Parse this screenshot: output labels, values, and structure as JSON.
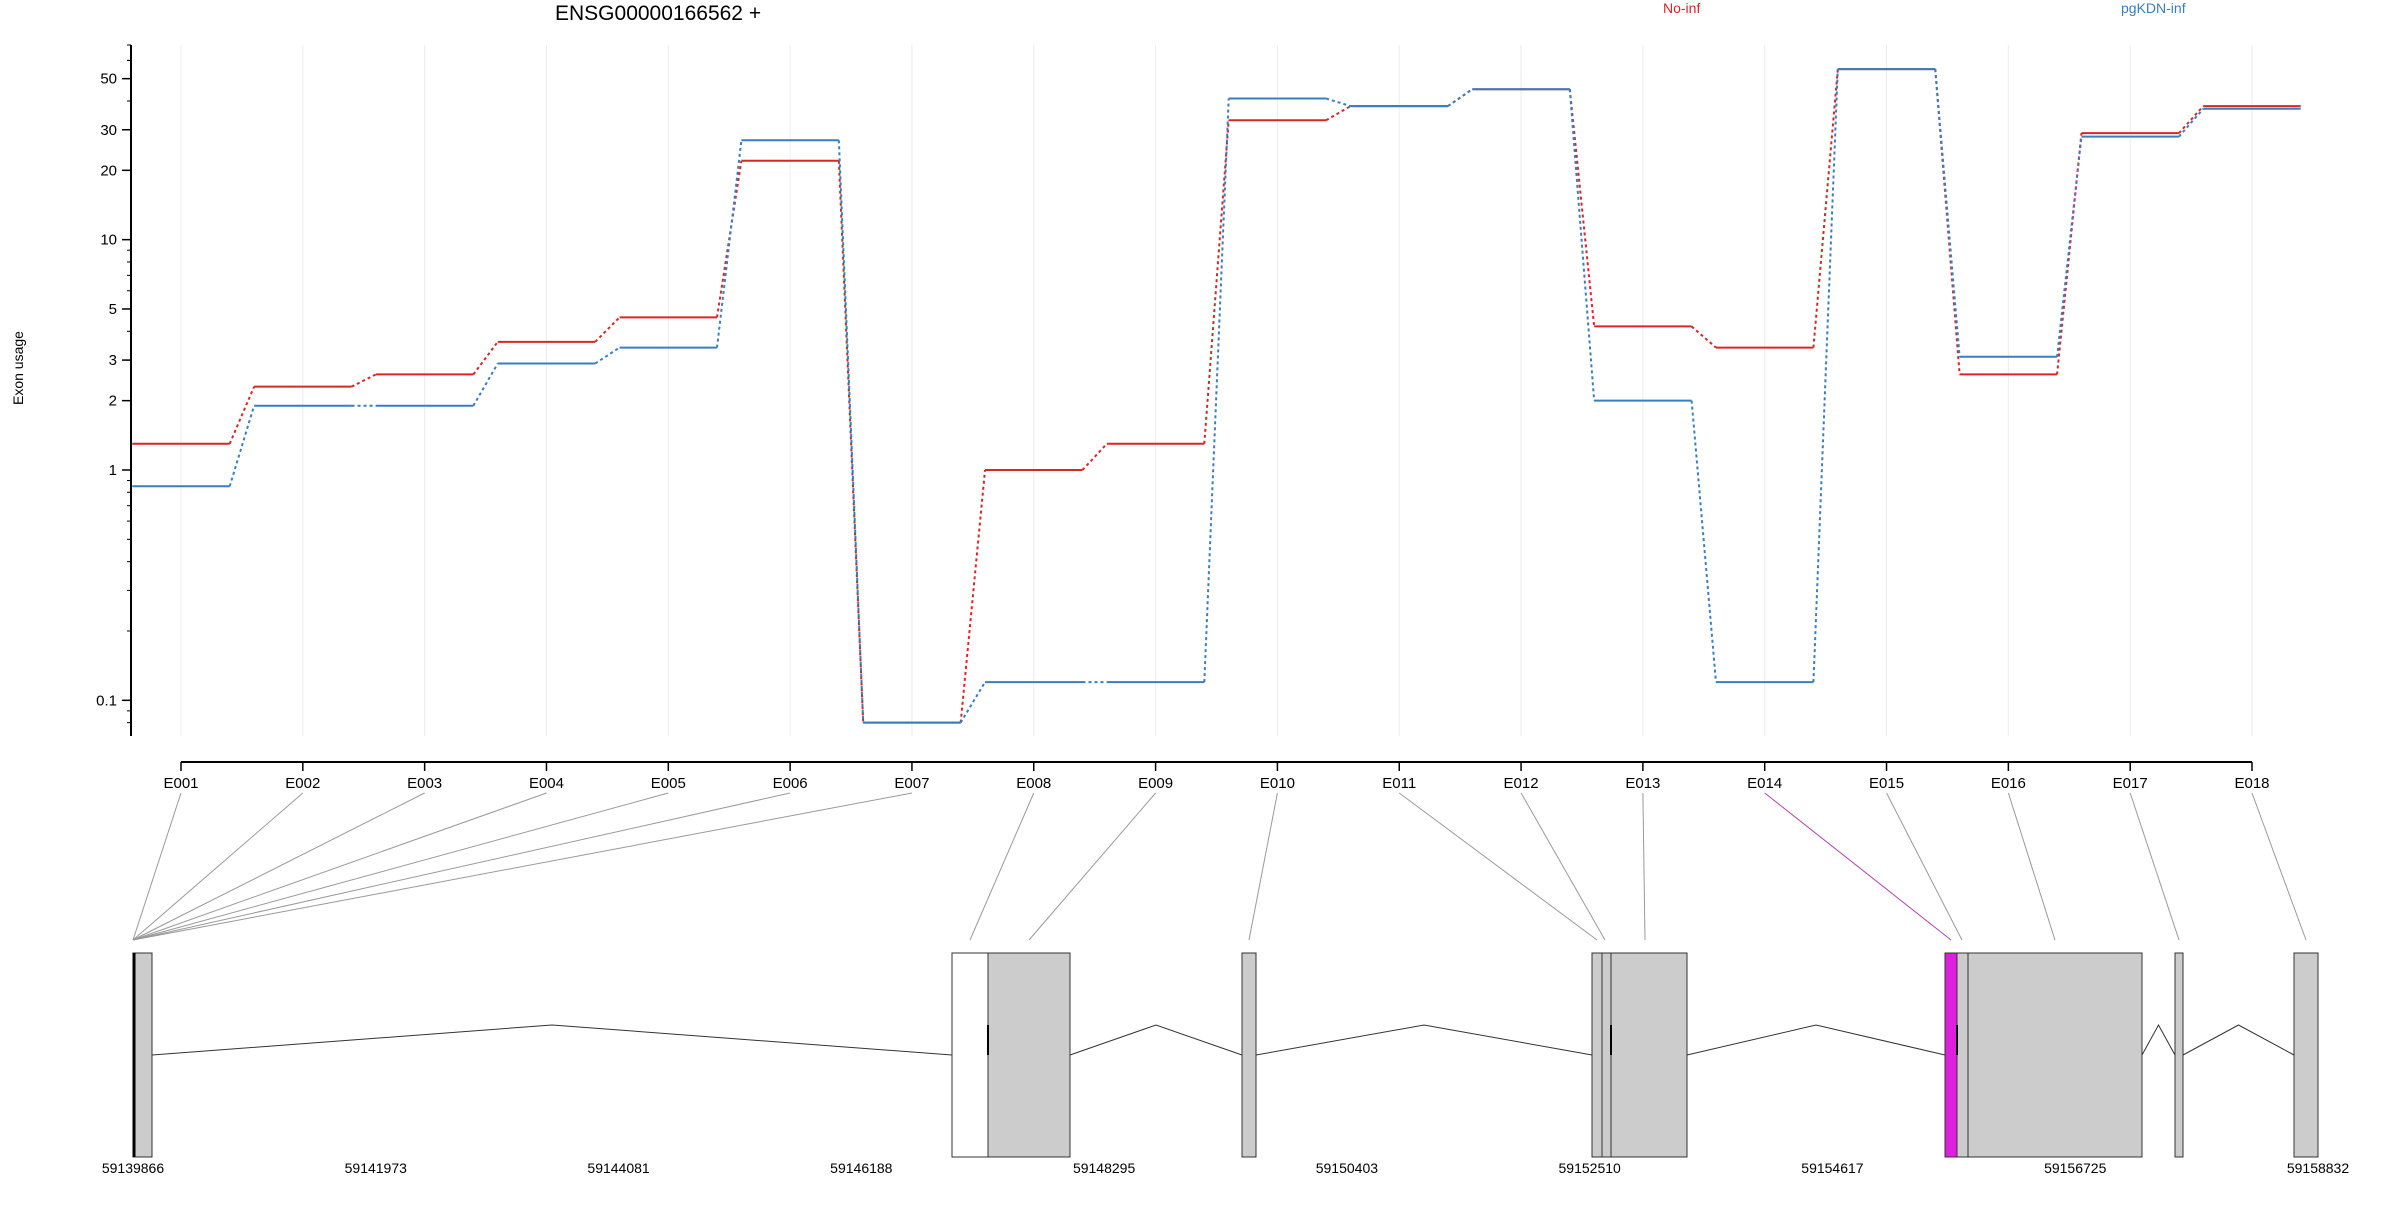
{
  "chart_data": {
    "type": "line",
    "title": "ENSG00000166562 +",
    "ylabel": "Exon usage",
    "yscale": "log",
    "ylim": [
      0.07,
      70
    ],
    "yticks": [
      0.1,
      1,
      2,
      3,
      5,
      10,
      20,
      30,
      50
    ],
    "ytick_labels": [
      "0.1",
      "1",
      "2",
      "3",
      "5",
      "10",
      "20",
      "30",
      "50"
    ],
    "categories": [
      "E001",
      "E002",
      "E003",
      "E004",
      "E005",
      "E006",
      "E007",
      "E008",
      "E009",
      "E010",
      "E011",
      "E012",
      "E013",
      "E014",
      "E015",
      "E016",
      "E017",
      "E018"
    ],
    "series": [
      {
        "name": "No-inf",
        "color": "#d62728",
        "values": [
          1.3,
          2.3,
          2.6,
          3.6,
          4.6,
          22,
          0.08,
          1.0,
          1.3,
          33,
          38,
          45,
          4.2,
          3.4,
          55,
          2.6,
          29,
          38
        ]
      },
      {
        "name": "pgKDN-inf",
        "color": "#3a7ebf",
        "values": [
          0.85,
          1.9,
          1.9,
          2.9,
          3.4,
          27,
          0.08,
          0.12,
          0.12,
          41,
          38,
          45,
          2.0,
          0.12,
          55,
          3.1,
          28,
          37
        ]
      }
    ],
    "legend_position": "top",
    "gene_model": {
      "coordinates": [
        "59139866",
        "59141973",
        "59144081",
        "59146188",
        "59148295",
        "59150403",
        "59152510",
        "59154617",
        "59156725",
        "59158832"
      ],
      "highlight_color": "#e01ee0",
      "exon_fill": "#cccccc"
    }
  }
}
